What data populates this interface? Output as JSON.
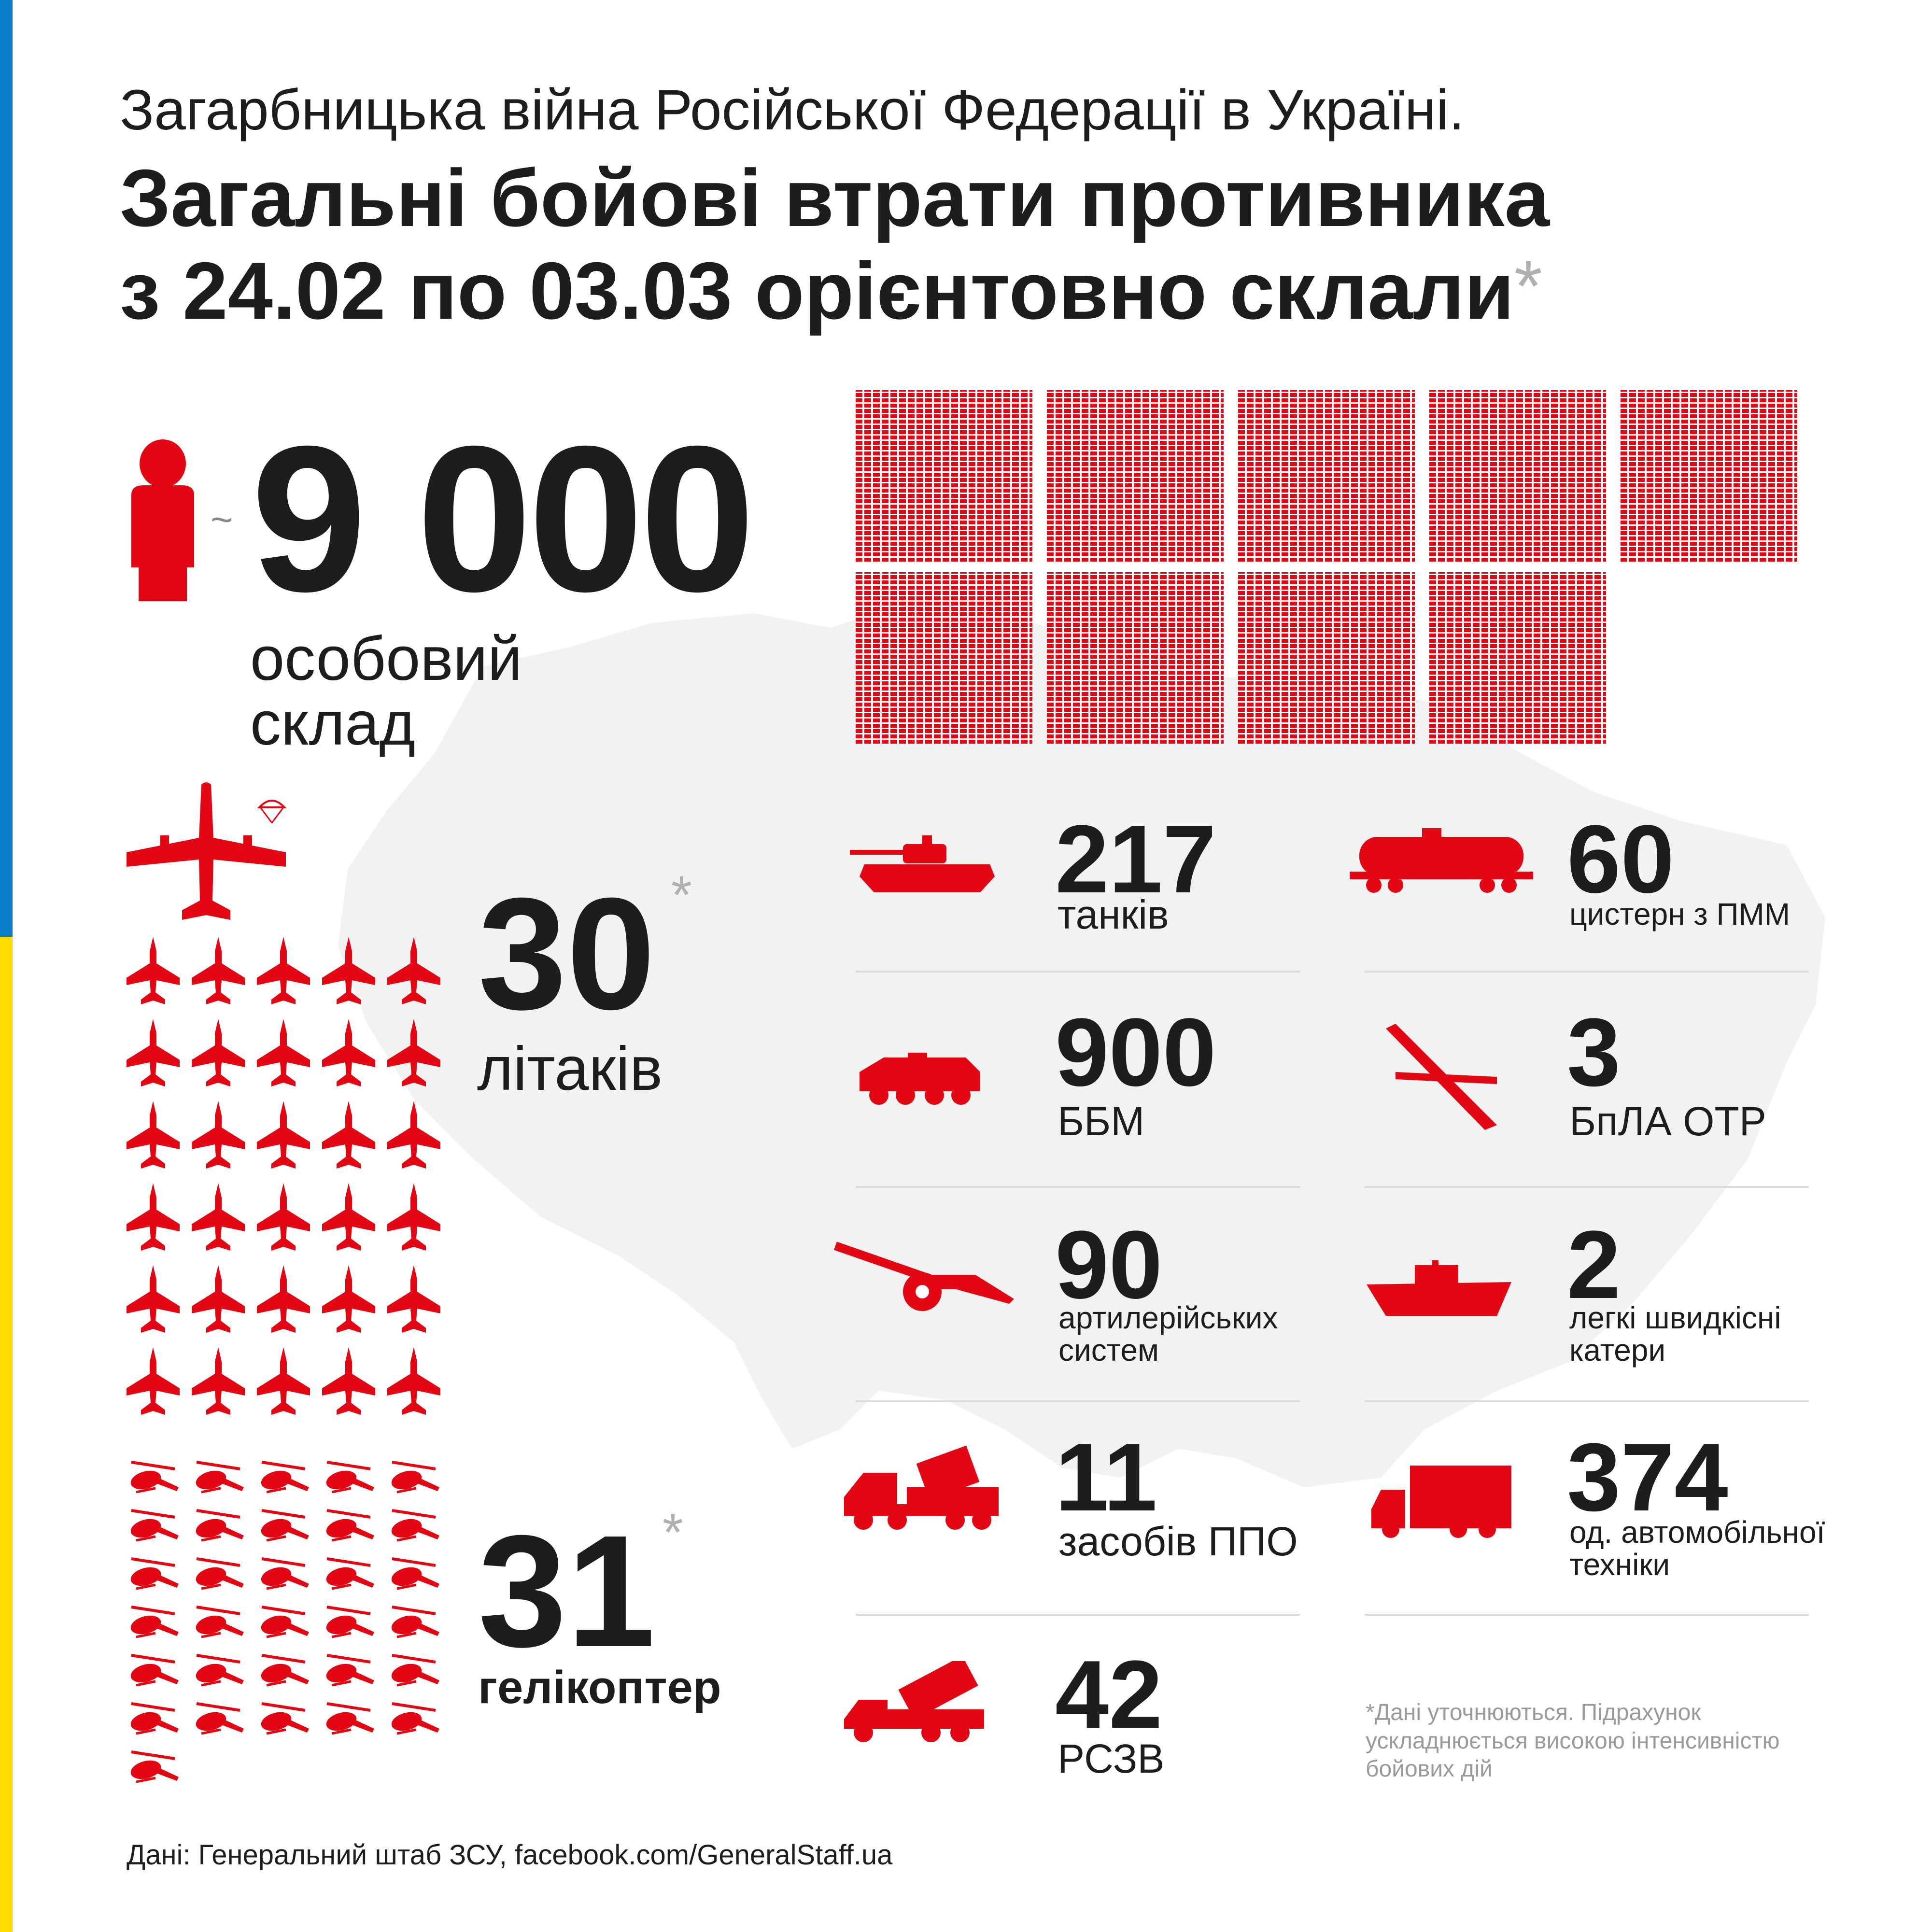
{
  "header": {
    "subtitle": "Загарбницька війна Російської Федерації в Україні.",
    "title_line1": "Загальні бойові втрати противника",
    "title_line2": "з 24.02 по 03.03 орієнтовно склали",
    "title_star": "*"
  },
  "personnel": {
    "approx": "~",
    "value": "9 000",
    "label_line1": "особовий",
    "label_line2": "склад"
  },
  "aircraft": {
    "value": "30",
    "star": "*",
    "label": "літаків"
  },
  "helicopters": {
    "value": "31",
    "star": "*",
    "label": "гелікоптер"
  },
  "stats_left": [
    {
      "value": "217",
      "label": "танків",
      "icon": "tank-icon"
    },
    {
      "value": "900",
      "label": "ББМ",
      "icon": "apc-icon"
    },
    {
      "value": "90",
      "label_line1": "артилерійських",
      "label_line2": "систем",
      "icon": "artillery-icon"
    },
    {
      "value": "11",
      "label": "засобів ППО",
      "icon": "air-defense-icon"
    },
    {
      "value": "42",
      "label": "РСЗВ",
      "icon": "mlrs-icon"
    }
  ],
  "stats_right": [
    {
      "value": "60",
      "label": "цистерн з ПММ",
      "icon": "fuel-tank-wagon-icon"
    },
    {
      "value": "3",
      "label": "БпЛА ОТР",
      "icon": "drone-icon"
    },
    {
      "value": "2",
      "label_line1": "легкі швидкісні",
      "label_line2": "катери",
      "icon": "boat-icon"
    },
    {
      "value": "374",
      "label_line1": "од. автомобільної",
      "label_line2": "техніки",
      "icon": "truck-icon"
    }
  ],
  "footnote": {
    "line1": "*Дані уточнюються. Підрахунок",
    "line2": "ускладнюється високою інтенсивністю",
    "line3": "бойових дій"
  },
  "source": "Дані: Генеральний штаб ЗСУ, facebook.com/GeneralStaff.ua",
  "colors": {
    "accent": "#e30613",
    "text": "#1d1d1b",
    "muted": "#9a9a9a",
    "map": "#f2f2f2",
    "flag_blue": "#0a7dc8",
    "flag_yellow": "#ffdd00"
  }
}
